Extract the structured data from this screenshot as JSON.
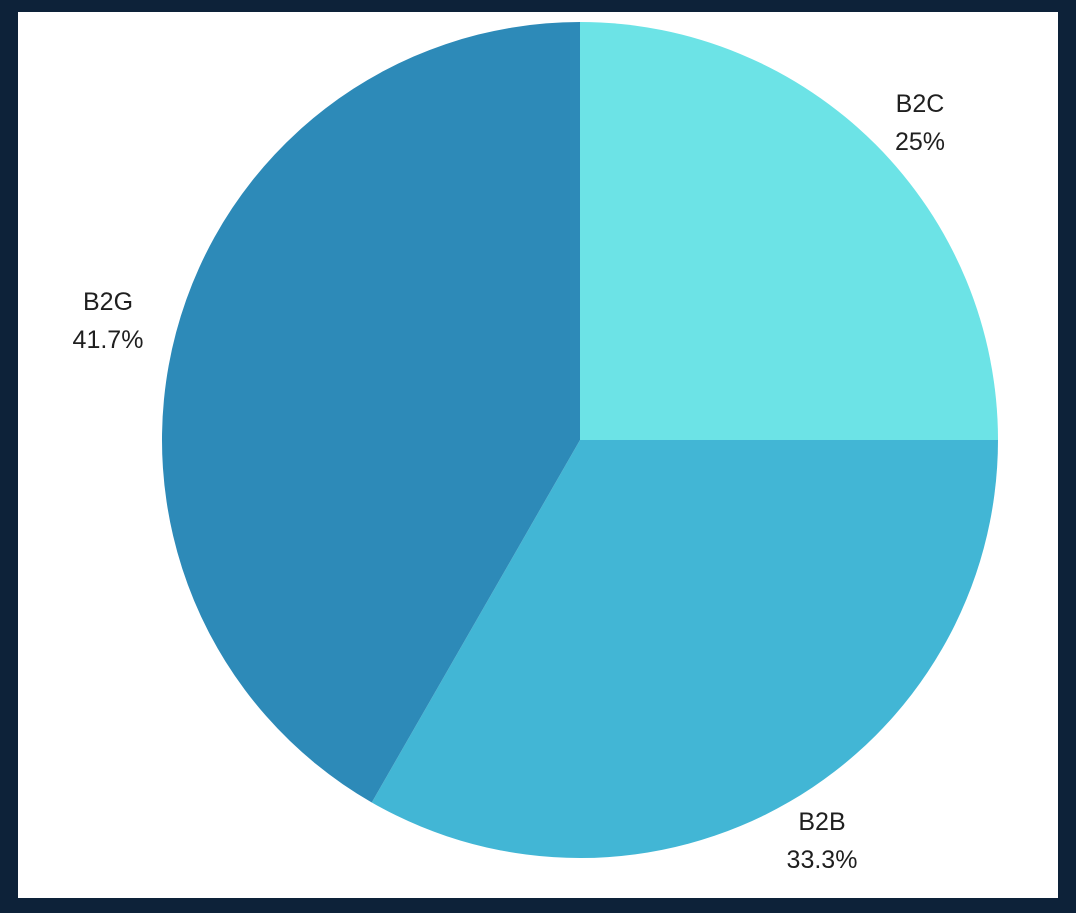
{
  "chart_data": {
    "type": "pie",
    "title": "",
    "slices": [
      {
        "label": "B2C",
        "value": 25,
        "value_label": "25%",
        "color": "#6ce3e6"
      },
      {
        "label": "B2B",
        "value": 33.3,
        "value_label": "33.3%",
        "color": "#42b6d5"
      },
      {
        "label": "B2G",
        "value": 41.7,
        "value_label": "41.7%",
        "color": "#2d8ab8"
      }
    ],
    "start_angle": "12 o'clock",
    "direction": "clockwise",
    "legend": "none",
    "labels": "outside"
  },
  "colors": {
    "page_background": "#0d2239",
    "panel_background": "#ffffff",
    "label_text": "#1f1f1f"
  }
}
